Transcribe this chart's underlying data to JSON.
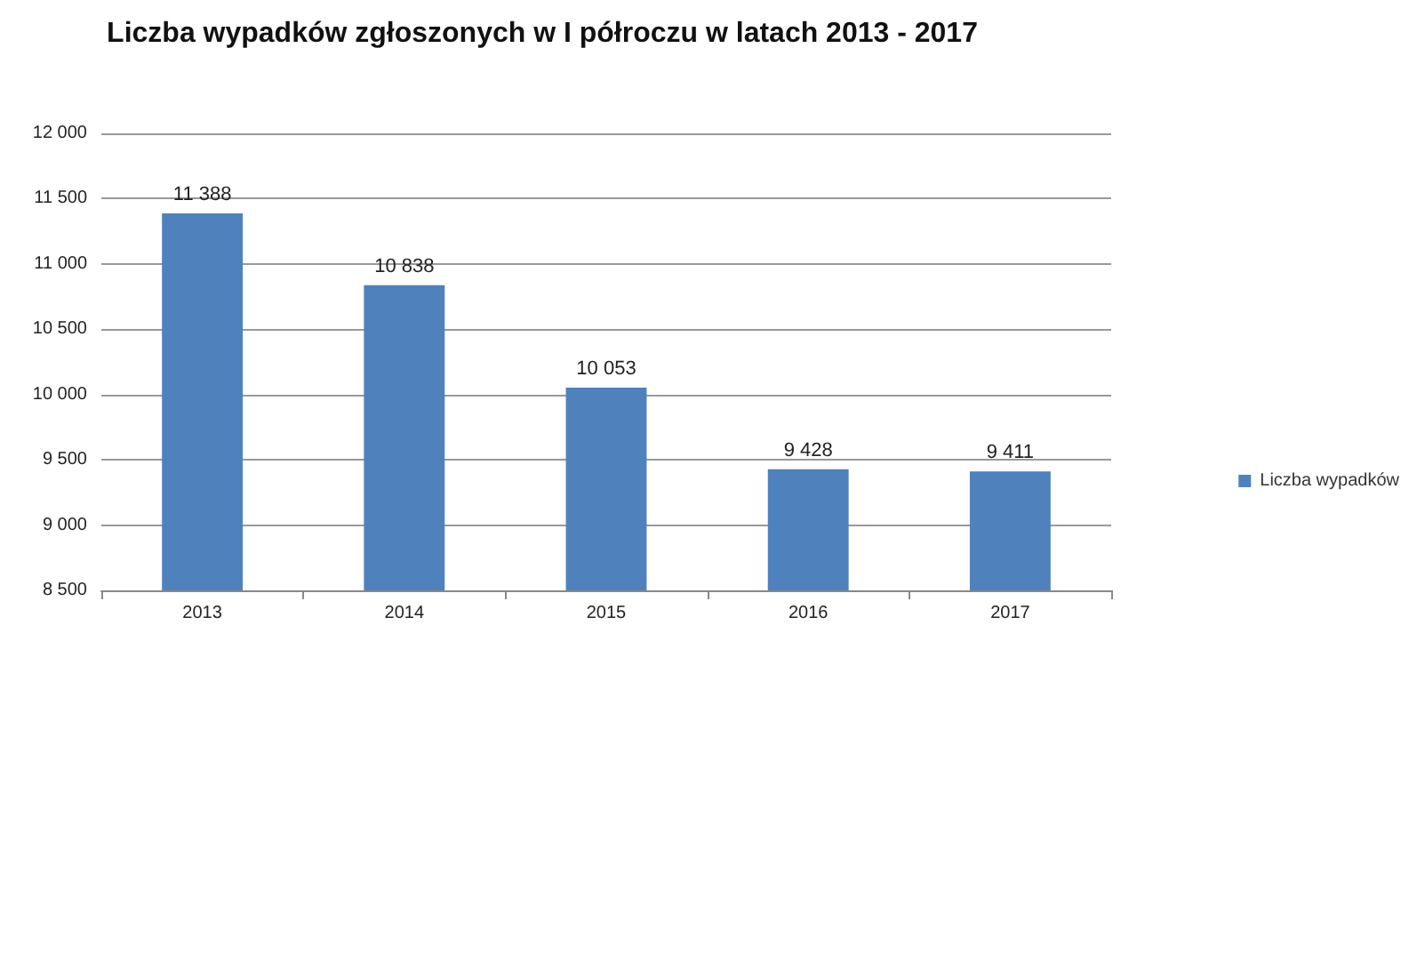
{
  "chart_data": {
    "type": "bar",
    "title": "Liczba wypadków zgłoszonych w I półroczu w latach 2013 - 2017",
    "categories": [
      "2013",
      "2014",
      "2015",
      "2016",
      "2017"
    ],
    "series": [
      {
        "name": "Liczba wypadków",
        "color": "#4f81bd",
        "values": [
          11388,
          10838,
          10053,
          9428,
          9411
        ],
        "value_labels": [
          "11 388",
          "10 838",
          "10 053",
          "9 428",
          "9 411"
        ]
      }
    ],
    "ylim": [
      8500,
      12000
    ],
    "yticks": [
      {
        "value": 8500,
        "label": "8 500"
      },
      {
        "value": 9000,
        "label": "9 000"
      },
      {
        "value": 9500,
        "label": "9 500"
      },
      {
        "value": 10000,
        "label": "10 000"
      },
      {
        "value": 10500,
        "label": "10 500"
      },
      {
        "value": 11000,
        "label": "11 000"
      },
      {
        "value": 11500,
        "label": "11 500"
      },
      {
        "value": 12000,
        "label": "12 000"
      }
    ],
    "grid": "y",
    "legend": "right"
  }
}
